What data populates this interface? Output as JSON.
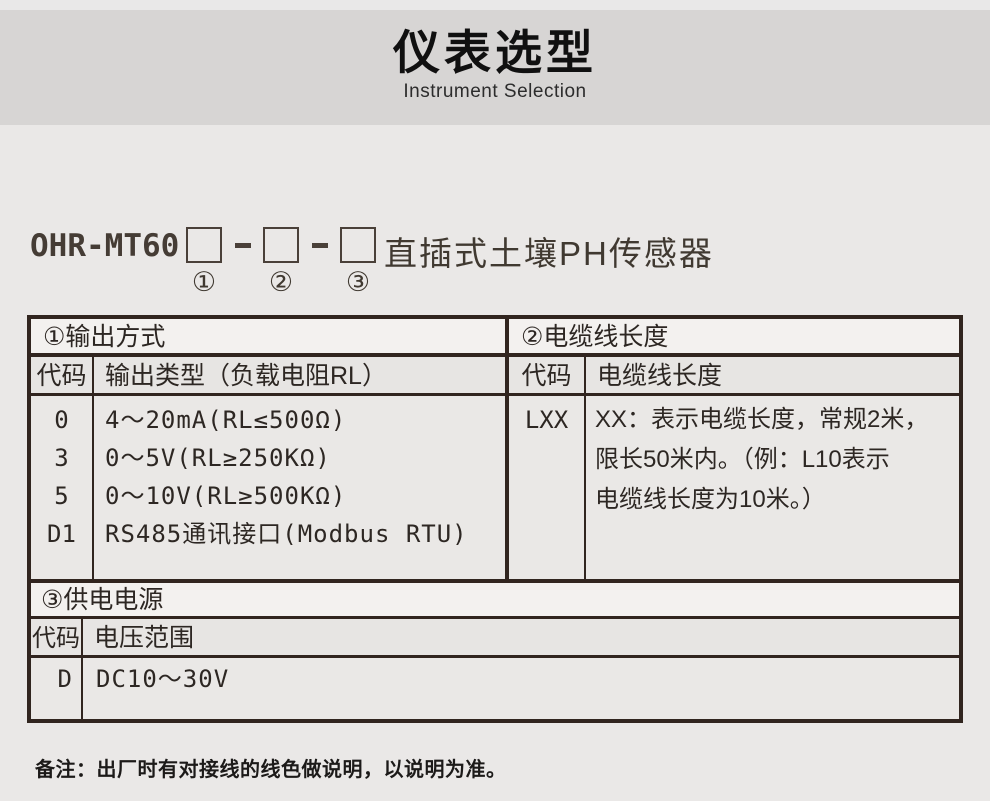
{
  "header": {
    "title": "仪表选型",
    "subtitle": "Instrument Selection"
  },
  "model": {
    "prefix": "OHR-MT60",
    "suffix": "直插式土壤PH传感器",
    "box_labels": [
      "①",
      "②",
      "③"
    ]
  },
  "table": {
    "section1": {
      "title": "①输出方式",
      "col_code": "代码",
      "col_desc": "输出类型（负载电阻RL）",
      "rows": [
        {
          "code": "0",
          "desc": "4～20mA(RL≤500Ω)"
        },
        {
          "code": "3",
          "desc": "0～5V(RL≥250KΩ)"
        },
        {
          "code": "5",
          "desc": "0～10V(RL≥500KΩ)"
        },
        {
          "code": "D1",
          "desc": "RS485通讯接口(Modbus RTU)"
        }
      ]
    },
    "section2": {
      "title": "②电缆线长度",
      "col_code": "代码",
      "col_desc": "电缆线长度",
      "rows": [
        {
          "code": "LXX",
          "desc_lines": [
            "XX：表示电缆长度，常规2米，",
            "限长50米内。（例：L10表示",
            "电缆线长度为10米。）"
          ]
        }
      ]
    },
    "section3": {
      "title": "③供电电源",
      "col_code": "代码",
      "col_desc": "电压范围",
      "rows": [
        {
          "code": "D",
          "desc": "DC10～30V"
        }
      ]
    }
  },
  "note": "备注：出厂时有对接线的线色做说明，以说明为准。",
  "colors": {
    "page_bg": "#eae8e7",
    "header_band_bg": "#d7d5d4",
    "table_border": "#31251f",
    "section_header_bg": "#f3f1ef",
    "subheader_bg": "#e7e5e3",
    "body_bg": "#eae8e6"
  }
}
